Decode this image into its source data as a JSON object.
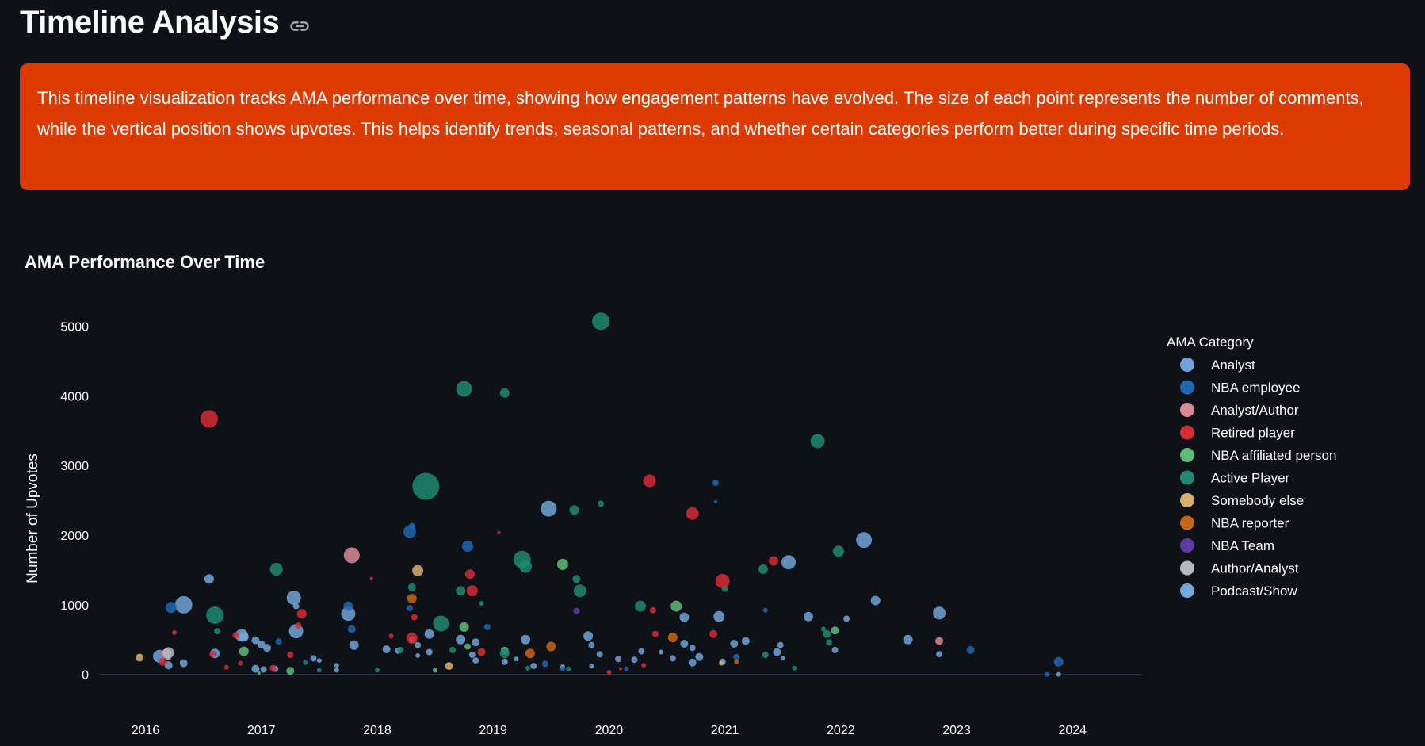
{
  "header": {
    "title": "Timeline Analysis",
    "link_icon": "link-icon"
  },
  "info": {
    "text": "This timeline visualization tracks AMA performance over time, showing how engagement patterns have evolved. The size of each point represents the number of comments, while the vertical position shows upvotes. This helps identify trends, seasonal patterns, and whether certain categories perform better during specific time periods.",
    "background": "#dd3a00"
  },
  "chart_data": {
    "type": "scatter",
    "title": "AMA Performance Over Time",
    "xlabel": "",
    "ylabel": "Number of Upvotes",
    "x_ticks": [
      "2016",
      "2017",
      "2018",
      "2019",
      "2020",
      "2021",
      "2022",
      "2023",
      "2024"
    ],
    "y_ticks": [
      0,
      1000,
      2000,
      3000,
      4000,
      5000
    ],
    "xlim": [
      2015.6,
      2024.6
    ],
    "ylim": [
      -380,
      5700
    ],
    "size_variable": "comments",
    "legend": {
      "title": "AMA Category",
      "position": "right"
    },
    "series": [
      {
        "name": "Analyst",
        "color": "#6fa3d6",
        "points": [
          [
            2016.12,
            260,
            8
          ],
          [
            2016.2,
            130,
            5
          ],
          [
            2016.33,
            1000,
            11
          ],
          [
            2016.33,
            160,
            5
          ],
          [
            2016.55,
            1370,
            6
          ],
          [
            2016.6,
            300,
            6
          ],
          [
            2016.83,
            560,
            8
          ],
          [
            2016.95,
            490,
            5
          ],
          [
            2017.0,
            430,
            5
          ],
          [
            2017.05,
            380,
            5
          ],
          [
            2016.95,
            80,
            5
          ],
          [
            2017.02,
            70,
            4
          ],
          [
            2017.12,
            80,
            4
          ],
          [
            2017.28,
            1100,
            9
          ],
          [
            2017.3,
            620,
            9
          ],
          [
            2017.3,
            980,
            4
          ],
          [
            2017.45,
            230,
            4
          ],
          [
            2017.5,
            200,
            3
          ],
          [
            2017.75,
            870,
            9
          ],
          [
            2017.8,
            420,
            6
          ],
          [
            2017.65,
            130,
            3
          ],
          [
            2018.08,
            360,
            5
          ],
          [
            2018.18,
            340,
            4
          ],
          [
            2018.3,
            500,
            4
          ],
          [
            2018.35,
            420,
            4
          ],
          [
            2018.45,
            580,
            6
          ],
          [
            2018.45,
            320,
            4
          ],
          [
            2018.35,
            270,
            3
          ],
          [
            2018.72,
            500,
            6
          ],
          [
            2018.82,
            280,
            4
          ],
          [
            2018.85,
            460,
            5
          ],
          [
            2018.85,
            200,
            4
          ],
          [
            2019.1,
            180,
            4
          ],
          [
            2019.2,
            220,
            3
          ],
          [
            2019.28,
            500,
            6
          ],
          [
            2019.35,
            120,
            4
          ],
          [
            2019.48,
            2380,
            10
          ],
          [
            2019.6,
            110,
            3
          ],
          [
            2019.82,
            550,
            6
          ],
          [
            2019.85,
            420,
            4
          ],
          [
            2019.85,
            120,
            3
          ],
          [
            2019.92,
            290,
            4
          ],
          [
            2020.08,
            220,
            4
          ],
          [
            2020.22,
            210,
            4
          ],
          [
            2020.28,
            330,
            4
          ],
          [
            2020.45,
            320,
            3
          ],
          [
            2020.55,
            230,
            4
          ],
          [
            2020.65,
            440,
            5
          ],
          [
            2020.65,
            820,
            6
          ],
          [
            2020.72,
            170,
            5
          ],
          [
            2020.78,
            250,
            5
          ],
          [
            2020.72,
            380,
            4
          ],
          [
            2020.95,
            830,
            7
          ],
          [
            2020.98,
            180,
            4
          ],
          [
            2021.08,
            440,
            5
          ],
          [
            2021.18,
            480,
            5
          ],
          [
            2021.45,
            320,
            5
          ],
          [
            2021.48,
            420,
            4
          ],
          [
            2021.5,
            230,
            3
          ],
          [
            2021.55,
            1610,
            9
          ],
          [
            2021.72,
            830,
            6
          ],
          [
            2021.95,
            350,
            4
          ],
          [
            2022.05,
            800,
            4
          ],
          [
            2022.2,
            1930,
            10
          ],
          [
            2022.3,
            1060,
            6
          ],
          [
            2022.58,
            500,
            6
          ],
          [
            2022.85,
            880,
            8
          ],
          [
            2022.85,
            290,
            4
          ],
          [
            2023.88,
            0,
            3
          ]
        ]
      },
      {
        "name": "NBA employee",
        "color": "#1f66b3",
        "points": [
          [
            2016.22,
            960,
            7
          ],
          [
            2017.15,
            470,
            4
          ],
          [
            2017.75,
            980,
            6
          ],
          [
            2017.78,
            650,
            5
          ],
          [
            2018.28,
            2050,
            8
          ],
          [
            2018.3,
            2130,
            4
          ],
          [
            2018.28,
            950,
            4
          ],
          [
            2018.78,
            1840,
            7
          ],
          [
            2018.95,
            680,
            4
          ],
          [
            2019.45,
            150,
            4
          ],
          [
            2019.6,
            80,
            3
          ],
          [
            2020.15,
            80,
            3
          ],
          [
            2020.92,
            2750,
            4
          ],
          [
            2020.92,
            2480,
            2
          ],
          [
            2021.1,
            250,
            4
          ],
          [
            2021.35,
            920,
            3
          ],
          [
            2023.12,
            350,
            5
          ],
          [
            2023.88,
            180,
            6
          ],
          [
            2023.78,
            0,
            3
          ]
        ]
      },
      {
        "name": "Analyst/Author",
        "color": "#d98b95",
        "points": [
          [
            2016.18,
            300,
            6
          ],
          [
            2017.78,
            1710,
            10
          ],
          [
            2022.85,
            480,
            5
          ]
        ]
      },
      {
        "name": "Retired player",
        "color": "#d62c35",
        "points": [
          [
            2016.15,
            180,
            5
          ],
          [
            2016.25,
            600,
            3
          ],
          [
            2016.55,
            3670,
            11
          ],
          [
            2016.58,
            290,
            4
          ],
          [
            2016.78,
            560,
            4
          ],
          [
            2016.82,
            160,
            3
          ],
          [
            2016.7,
            100,
            3
          ],
          [
            2017.1,
            90,
            4
          ],
          [
            2017.25,
            280,
            4
          ],
          [
            2017.35,
            870,
            6
          ],
          [
            2017.32,
            700,
            4
          ],
          [
            2017.95,
            1380,
            2
          ],
          [
            2018.12,
            550,
            3
          ],
          [
            2018.3,
            520,
            7
          ],
          [
            2018.32,
            820,
            4
          ],
          [
            2018.8,
            1440,
            6
          ],
          [
            2018.82,
            1200,
            7
          ],
          [
            2018.9,
            320,
            5
          ],
          [
            2019.05,
            2040,
            2
          ],
          [
            2020.0,
            30,
            3
          ],
          [
            2020.35,
            2780,
            8
          ],
          [
            2020.38,
            920,
            4
          ],
          [
            2020.4,
            580,
            4
          ],
          [
            2020.3,
            130,
            3
          ],
          [
            2020.72,
            2310,
            8
          ],
          [
            2020.9,
            580,
            5
          ],
          [
            2020.98,
            1340,
            9
          ],
          [
            2021.42,
            1630,
            6
          ],
          [
            2020.1,
            80,
            2
          ]
        ]
      },
      {
        "name": "NBA affiliated person",
        "color": "#5dbb77",
        "points": [
          [
            2016.85,
            330,
            6
          ],
          [
            2017.25,
            50,
            5
          ],
          [
            2018.75,
            680,
            6
          ],
          [
            2018.78,
            400,
            4
          ],
          [
            2019.1,
            340,
            5
          ],
          [
            2019.6,
            1580,
            7
          ],
          [
            2020.58,
            980,
            7
          ],
          [
            2021.95,
            630,
            5
          ],
          [
            2016.98,
            20,
            2
          ],
          [
            2018.5,
            60,
            3
          ]
        ]
      },
      {
        "name": "Active Player",
        "color": "#1f8a70",
        "points": [
          [
            2016.6,
            850,
            11
          ],
          [
            2016.62,
            620,
            4
          ],
          [
            2017.13,
            1510,
            8
          ],
          [
            2017.38,
            170,
            3
          ],
          [
            2017.5,
            60,
            3
          ],
          [
            2018.3,
            1250,
            5
          ],
          [
            2018.2,
            350,
            4
          ],
          [
            2018.42,
            2700,
            17
          ],
          [
            2018.55,
            730,
            10
          ],
          [
            2018.75,
            4100,
            10
          ],
          [
            2018.72,
            1200,
            6
          ],
          [
            2018.65,
            350,
            4
          ],
          [
            2018.9,
            1020,
            3
          ],
          [
            2019.1,
            4040,
            6
          ],
          [
            2019.25,
            1650,
            11
          ],
          [
            2019.28,
            1550,
            8
          ],
          [
            2019.1,
            300,
            6
          ],
          [
            2019.7,
            2360,
            6
          ],
          [
            2019.72,
            1370,
            5
          ],
          [
            2019.75,
            1200,
            8
          ],
          [
            2019.93,
            5070,
            11
          ],
          [
            2019.93,
            2450,
            4
          ],
          [
            2020.27,
            980,
            7
          ],
          [
            2021.0,
            1230,
            4
          ],
          [
            2021.33,
            1510,
            6
          ],
          [
            2021.35,
            280,
            4
          ],
          [
            2021.8,
            3350,
            9
          ],
          [
            2021.98,
            1770,
            7
          ],
          [
            2021.88,
            580,
            5
          ],
          [
            2021.9,
            460,
            4
          ],
          [
            2021.85,
            650,
            3
          ],
          [
            2018.0,
            60,
            3
          ],
          [
            2019.3,
            90,
            3
          ],
          [
            2019.65,
            80,
            3
          ],
          [
            2021.6,
            90,
            3
          ]
        ]
      },
      {
        "name": "Somebody else",
        "color": "#d7b06e",
        "points": [
          [
            2015.95,
            240,
            5
          ],
          [
            2018.35,
            1490,
            7
          ],
          [
            2018.62,
            120,
            5
          ],
          [
            2020.97,
            160,
            3
          ]
        ]
      },
      {
        "name": "NBA reporter",
        "color": "#c8650f",
        "points": [
          [
            2018.3,
            1090,
            6
          ],
          [
            2019.32,
            300,
            6
          ],
          [
            2019.5,
            400,
            6
          ],
          [
            2020.55,
            530,
            6
          ],
          [
            2021.1,
            180,
            3
          ]
        ]
      },
      {
        "name": "NBA Team",
        "color": "#5e3ca6",
        "points": [
          [
            2019.72,
            910,
            4
          ]
        ]
      },
      {
        "name": "Author/Analyst",
        "color": "#b6b9c2",
        "points": [
          [
            2016.2,
            310,
            7
          ],
          [
            2016.2,
            230,
            3
          ]
        ]
      },
      {
        "name": "Podcast/Show",
        "color": "#74a9dc",
        "points": [
          [
            2016.85,
            540,
            6
          ],
          [
            2017.65,
            60,
            3
          ]
        ]
      }
    ]
  }
}
